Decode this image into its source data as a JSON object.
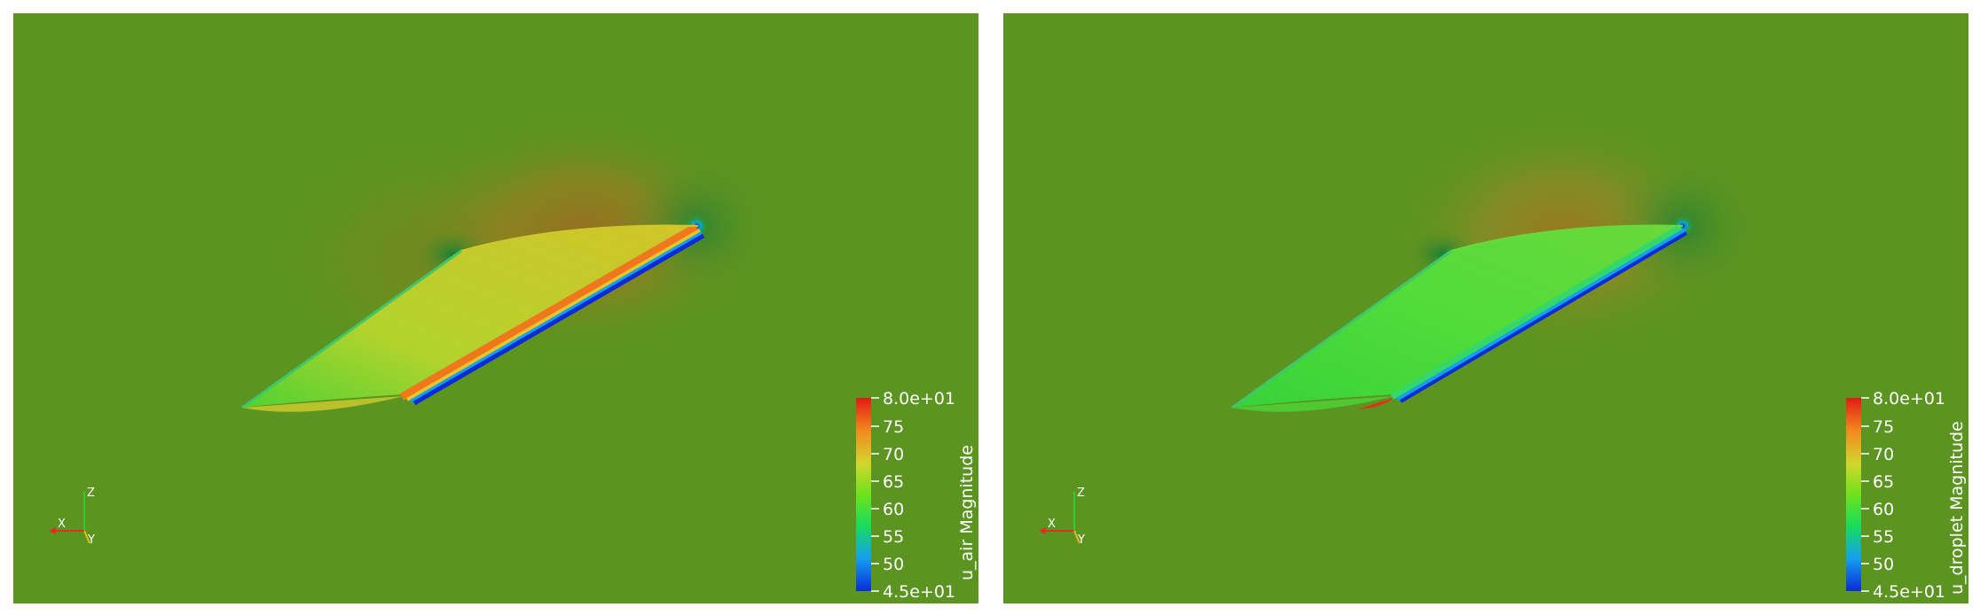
{
  "views": [
    {
      "id": "left",
      "colorbar": {
        "title": "u_air Magnitude",
        "ticks": [
          "8.0e+01",
          "75",
          "70",
          "65",
          "60",
          "55",
          "50",
          "4.5e+01"
        ],
        "range": [
          45,
          80
        ]
      },
      "axes": {
        "x": "X",
        "y": "Y",
        "z": "Z"
      }
    },
    {
      "id": "right",
      "colorbar": {
        "title": "u_droplet Magnitude",
        "ticks": [
          "8.0e+01",
          "75",
          "70",
          "65",
          "60",
          "55",
          "50",
          "4.5e+01"
        ],
        "range": [
          45,
          80
        ]
      },
      "axes": {
        "x": "X",
        "y": "Y",
        "z": "Z"
      }
    }
  ],
  "colors": {
    "background_field": "#5b9420",
    "colormap": [
      "#0a2bd6",
      "#14a0ee",
      "#18dd5a",
      "#6ee21c",
      "#d2d62c",
      "#f28a1e",
      "#e21a14"
    ]
  }
}
